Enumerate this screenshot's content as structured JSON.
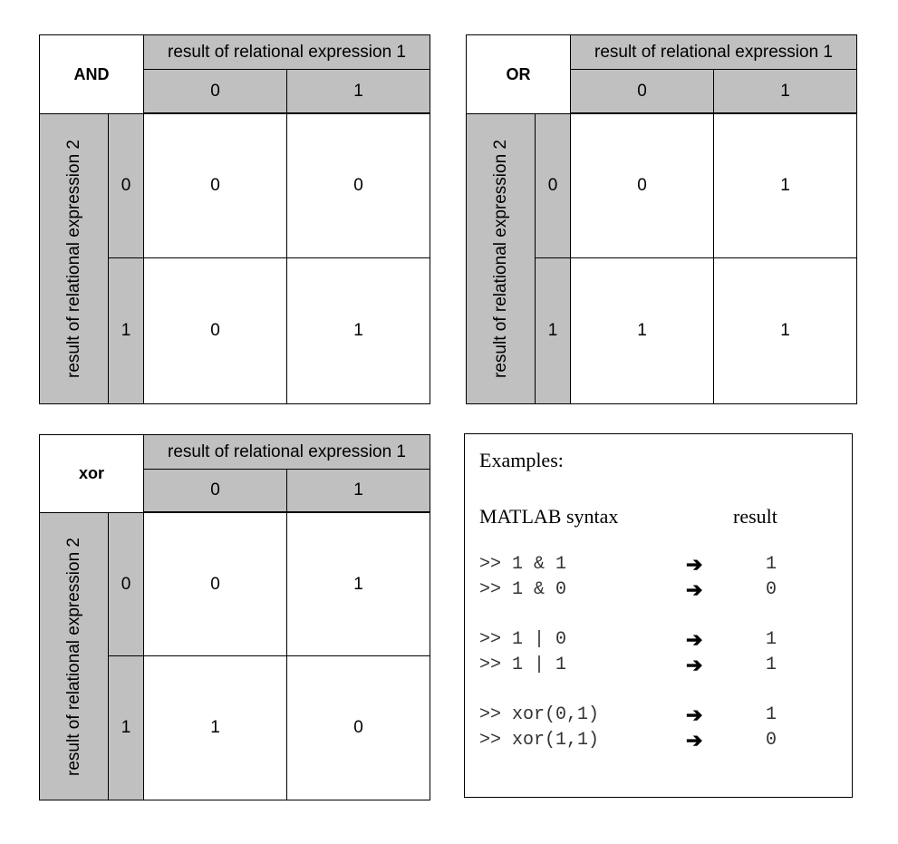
{
  "tables": [
    {
      "operator": "AND",
      "col_header": "result of relational expression 1",
      "row_header": "result of relational expression 2",
      "col_values": [
        "0",
        "1"
      ],
      "row_values": [
        "0",
        "1"
      ],
      "cells": [
        [
          "0",
          "0"
        ],
        [
          "0",
          "1"
        ]
      ]
    },
    {
      "operator": "OR",
      "col_header": "result of relational expression 1",
      "row_header": "result of relational expression 2",
      "col_values": [
        "0",
        "1"
      ],
      "row_values": [
        "0",
        "1"
      ],
      "cells": [
        [
          "0",
          "1"
        ],
        [
          "1",
          "1"
        ]
      ]
    },
    {
      "operator": "xor",
      "col_header": "result of relational expression 1",
      "row_header": "result of relational expression 2",
      "col_values": [
        "0",
        "1"
      ],
      "row_values": [
        "0",
        "1"
      ],
      "cells": [
        [
          "0",
          "1"
        ],
        [
          "1",
          "0"
        ]
      ]
    }
  ],
  "examples": {
    "title": "Examples:",
    "syntax_header": "MATLAB syntax",
    "result_header": "result",
    "arrow": "➔",
    "rows": [
      {
        "code": ">> 1 & 1",
        "result": "1"
      },
      {
        "code": ">> 1 & 0",
        "result": "0"
      },
      {
        "code": ">> 1 | 0",
        "result": "1"
      },
      {
        "code": ">> 1 | 1",
        "result": "1"
      },
      {
        "code": ">> xor(0,1)",
        "result": "1"
      },
      {
        "code": ">> xor(1,1)",
        "result": "0"
      }
    ]
  }
}
